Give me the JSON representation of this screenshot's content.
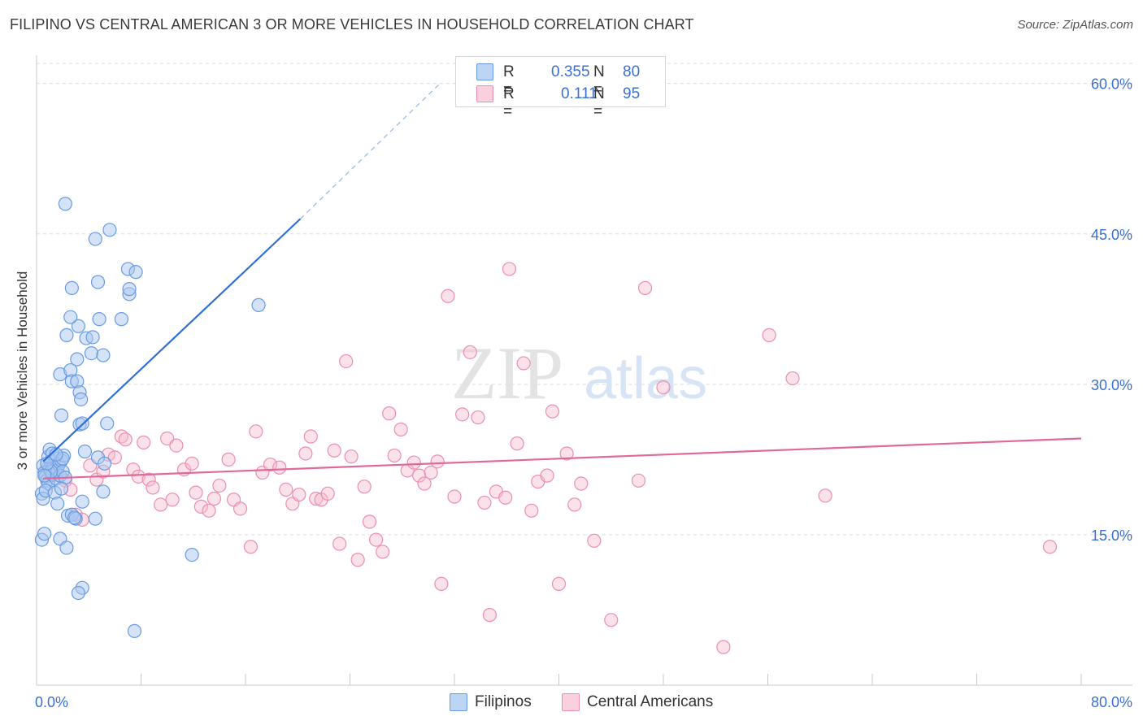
{
  "header": {
    "title": "FILIPINO VS CENTRAL AMERICAN 3 OR MORE VEHICLES IN HOUSEHOLD CORRELATION CHART",
    "source": "Source: ZipAtlas.com"
  },
  "watermark": {
    "text_zip": "ZIP",
    "text_atlas": "atlas"
  },
  "legend_top": {
    "rows": [
      {
        "r_label": "R =",
        "r_value": "0.355",
        "n_label": "N =",
        "n_value": "80"
      },
      {
        "r_label": "R =",
        "r_value": "0.111",
        "n_label": "N =",
        "n_value": "95"
      }
    ]
  },
  "legend_bottom": {
    "items": [
      "Filipinos",
      "Central Americans"
    ]
  },
  "colors": {
    "blue_fill": "#a9c8f2",
    "blue_stroke": "#6a9be0",
    "blue_line": "#2f6fd6",
    "pink_fill": "#f7bccf",
    "pink_stroke": "#eb8fae",
    "pink_line": "#e0699a",
    "tick_label": "#3b6fd4",
    "grid": "#dcdcdc"
  },
  "chart_data": {
    "type": "scatter",
    "title": "FILIPINO VS CENTRAL AMERICAN 3 OR MORE VEHICLES IN HOUSEHOLD CORRELATION CHART",
    "xlabel": "",
    "ylabel": "3 or more Vehicles in Household",
    "xlim": [
      0,
      80
    ],
    "ylim": [
      0,
      62
    ],
    "x_tick_labels": [
      "0.0%",
      "80.0%"
    ],
    "y_ticks": [
      15,
      30,
      45,
      60
    ],
    "y_tick_labels": [
      "15.0%",
      "30.0%",
      "45.0%",
      "60.0%"
    ],
    "grid": true,
    "legend_position": "top-center",
    "series": [
      {
        "name": "Filipinos",
        "r": 0.355,
        "n": 80,
        "trend": {
          "x0": 0.5,
          "y0": 22.3,
          "x1": 20.2,
          "y1": 46.5,
          "dash_to_x": 30.9,
          "dash_to_y": 60.0
        },
        "points": [
          [
            0.5,
            21.9
          ],
          [
            0.6,
            21.2
          ],
          [
            0.7,
            20.8
          ],
          [
            0.8,
            20.4
          ],
          [
            0.9,
            20.1
          ],
          [
            1.0,
            21.6
          ],
          [
            1.1,
            22.3
          ],
          [
            1.2,
            21.0
          ],
          [
            1.3,
            21.8
          ],
          [
            1.4,
            22.6
          ],
          [
            1.5,
            20.6
          ],
          [
            1.6,
            21.4
          ],
          [
            1.7,
            22.0
          ],
          [
            1.8,
            20.9
          ],
          [
            1.9,
            22.4
          ],
          [
            2.0,
            21.3
          ],
          [
            2.1,
            22.9
          ],
          [
            2.2,
            20.7
          ],
          [
            0.4,
            19.1
          ],
          [
            0.5,
            18.6
          ],
          [
            0.7,
            19.4
          ],
          [
            0.9,
            22.8
          ],
          [
            1.0,
            23.5
          ],
          [
            1.2,
            23.1
          ],
          [
            1.4,
            19.2
          ],
          [
            1.6,
            18.1
          ],
          [
            1.9,
            19.6
          ],
          [
            2.4,
            16.9
          ],
          [
            2.7,
            17.0
          ],
          [
            3.0,
            16.6
          ],
          [
            3.5,
            18.3
          ],
          [
            4.5,
            16.6
          ],
          [
            0.4,
            14.5
          ],
          [
            0.6,
            15.1
          ],
          [
            1.8,
            14.6
          ],
          [
            2.3,
            13.7
          ],
          [
            11.9,
            13.0
          ],
          [
            3.5,
            9.7
          ],
          [
            3.2,
            9.2
          ],
          [
            7.5,
            5.4
          ],
          [
            1.9,
            26.9
          ],
          [
            1.8,
            31.0
          ],
          [
            2.6,
            31.4
          ],
          [
            2.7,
            30.3
          ],
          [
            3.1,
            30.3
          ],
          [
            3.3,
            29.2
          ],
          [
            3.4,
            28.5
          ],
          [
            3.3,
            26.0
          ],
          [
            3.5,
            26.1
          ],
          [
            5.4,
            26.1
          ],
          [
            3.1,
            32.5
          ],
          [
            3.8,
            34.6
          ],
          [
            4.2,
            33.1
          ],
          [
            4.3,
            34.7
          ],
          [
            5.1,
            32.9
          ],
          [
            2.3,
            34.9
          ],
          [
            3.2,
            35.8
          ],
          [
            4.8,
            36.5
          ],
          [
            2.6,
            36.7
          ],
          [
            6.5,
            36.5
          ],
          [
            2.7,
            39.6
          ],
          [
            4.7,
            40.2
          ],
          [
            7.0,
            41.5
          ],
          [
            7.6,
            41.2
          ],
          [
            7.1,
            39.0
          ],
          [
            7.1,
            39.5
          ],
          [
            4.5,
            44.5
          ],
          [
            5.6,
            45.4
          ],
          [
            2.2,
            48.0
          ],
          [
            17.0,
            37.9
          ],
          [
            4.7,
            22.7
          ],
          [
            5.1,
            19.3
          ],
          [
            5.2,
            22.1
          ],
          [
            2.9,
            16.7
          ],
          [
            3.7,
            23.3
          ],
          [
            2.0,
            22.6
          ],
          [
            1.1,
            21.3
          ],
          [
            0.8,
            22.1
          ],
          [
            0.6,
            20.9
          ],
          [
            1.5,
            23.0
          ]
        ]
      },
      {
        "name": "Central Americans",
        "r": 0.111,
        "n": 95,
        "trend": {
          "x0": 0.5,
          "y0": 20.6,
          "x1": 80.0,
          "y1": 24.6
        },
        "points": [
          [
            0.8,
            21.6
          ],
          [
            1.2,
            20.9
          ],
          [
            1.5,
            21.3
          ],
          [
            2.2,
            20.4
          ],
          [
            2.6,
            19.5
          ],
          [
            3.0,
            17.0
          ],
          [
            3.5,
            16.5
          ],
          [
            4.1,
            21.9
          ],
          [
            4.6,
            20.5
          ],
          [
            5.1,
            21.3
          ],
          [
            5.5,
            23.0
          ],
          [
            6.0,
            22.7
          ],
          [
            6.5,
            24.8
          ],
          [
            6.8,
            24.5
          ],
          [
            7.4,
            21.5
          ],
          [
            7.8,
            20.8
          ],
          [
            8.2,
            24.2
          ],
          [
            8.6,
            20.5
          ],
          [
            8.9,
            19.7
          ],
          [
            9.5,
            18.0
          ],
          [
            10.0,
            24.6
          ],
          [
            10.4,
            18.5
          ],
          [
            10.7,
            23.9
          ],
          [
            11.3,
            21.5
          ],
          [
            11.9,
            22.1
          ],
          [
            12.2,
            19.2
          ],
          [
            12.6,
            17.8
          ],
          [
            13.2,
            17.4
          ],
          [
            13.6,
            18.6
          ],
          [
            14.0,
            19.9
          ],
          [
            14.7,
            22.5
          ],
          [
            15.1,
            18.5
          ],
          [
            15.6,
            17.6
          ],
          [
            16.4,
            13.8
          ],
          [
            16.8,
            25.3
          ],
          [
            17.3,
            21.2
          ],
          [
            17.9,
            22.0
          ],
          [
            18.6,
            21.7
          ],
          [
            19.1,
            19.5
          ],
          [
            19.6,
            18.1
          ],
          [
            20.1,
            19.0
          ],
          [
            20.6,
            23.1
          ],
          [
            21.0,
            24.8
          ],
          [
            21.4,
            18.6
          ],
          [
            21.8,
            18.5
          ],
          [
            22.3,
            19.1
          ],
          [
            22.8,
            23.4
          ],
          [
            23.2,
            14.1
          ],
          [
            23.7,
            32.3
          ],
          [
            24.1,
            22.8
          ],
          [
            24.6,
            12.5
          ],
          [
            25.1,
            19.8
          ],
          [
            25.5,
            16.3
          ],
          [
            26.0,
            14.5
          ],
          [
            26.5,
            13.3
          ],
          [
            27.0,
            27.1
          ],
          [
            27.4,
            22.9
          ],
          [
            27.9,
            25.5
          ],
          [
            28.4,
            21.4
          ],
          [
            28.9,
            22.2
          ],
          [
            29.3,
            20.9
          ],
          [
            29.7,
            20.1
          ],
          [
            30.2,
            21.2
          ],
          [
            30.7,
            22.3
          ],
          [
            31.0,
            10.1
          ],
          [
            31.5,
            38.8
          ],
          [
            32.0,
            18.8
          ],
          [
            32.6,
            27.0
          ],
          [
            33.2,
            33.2
          ],
          [
            33.8,
            26.7
          ],
          [
            34.3,
            18.2
          ],
          [
            34.7,
            7.0
          ],
          [
            35.2,
            19.3
          ],
          [
            35.9,
            18.7
          ],
          [
            36.2,
            41.5
          ],
          [
            36.8,
            24.1
          ],
          [
            37.3,
            32.1
          ],
          [
            37.9,
            17.4
          ],
          [
            38.4,
            20.3
          ],
          [
            39.1,
            20.9
          ],
          [
            39.5,
            27.3
          ],
          [
            40.0,
            10.1
          ],
          [
            40.6,
            23.1
          ],
          [
            41.2,
            18.0
          ],
          [
            41.7,
            20.1
          ],
          [
            42.7,
            14.4
          ],
          [
            44.0,
            6.5
          ],
          [
            46.1,
            20.4
          ],
          [
            46.6,
            39.6
          ],
          [
            48.0,
            29.7
          ],
          [
            52.6,
            3.8
          ],
          [
            56.1,
            34.9
          ],
          [
            57.9,
            30.6
          ],
          [
            60.4,
            18.9
          ],
          [
            77.6,
            13.8
          ]
        ]
      }
    ]
  }
}
